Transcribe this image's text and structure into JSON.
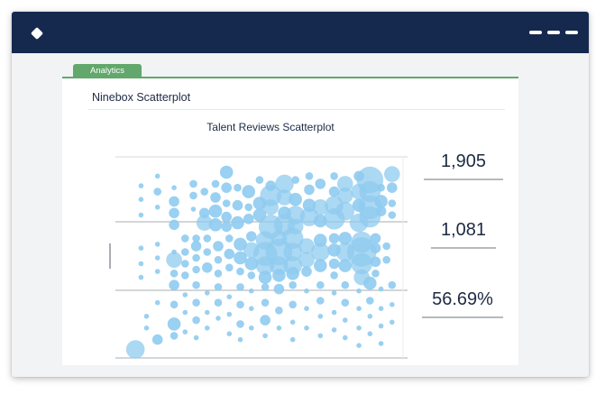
{
  "app": {
    "logo_icon": "diamond-icon",
    "menu_icon": "menu-dashes-icon",
    "header_color": "#15294f",
    "accent_color": "#62a76c"
  },
  "tab": {
    "label": "Analytics"
  },
  "section": {
    "title": "Ninebox Scatterplot"
  },
  "chart_data": {
    "type": "scatter",
    "title": "Talent Reviews Scatterplot",
    "xlabel": "",
    "ylabel": "",
    "grid": "three horizontal bands (3x3 ninebox)",
    "marker_color": "#8fcbef",
    "note": "bubble chart; x and y are relative 0-100 positions in the ninebox, size is relative magnitude",
    "points": [
      {
        "x": 6,
        "y": 87,
        "s": 1
      },
      {
        "x": 6,
        "y": 80,
        "s": 1
      },
      {
        "x": 6,
        "y": 72,
        "s": 1
      },
      {
        "x": 12,
        "y": 92,
        "s": 1
      },
      {
        "x": 12,
        "y": 84,
        "s": 2
      },
      {
        "x": 12,
        "y": 76,
        "s": 1
      },
      {
        "x": 18,
        "y": 86,
        "s": 1
      },
      {
        "x": 18,
        "y": 79,
        "s": 3
      },
      {
        "x": 18,
        "y": 73,
        "s": 3
      },
      {
        "x": 18,
        "y": 67,
        "s": 3
      },
      {
        "x": 25,
        "y": 88,
        "s": 2
      },
      {
        "x": 25,
        "y": 82,
        "s": 2
      },
      {
        "x": 25,
        "y": 75,
        "s": 1
      },
      {
        "x": 29,
        "y": 84,
        "s": 2
      },
      {
        "x": 29,
        "y": 73,
        "s": 3
      },
      {
        "x": 29,
        "y": 68,
        "s": 5
      },
      {
        "x": 33,
        "y": 88,
        "s": 2
      },
      {
        "x": 33,
        "y": 81,
        "s": 3
      },
      {
        "x": 33,
        "y": 74,
        "s": 4
      },
      {
        "x": 33,
        "y": 67,
        "s": 4
      },
      {
        "x": 37,
        "y": 94,
        "s": 4
      },
      {
        "x": 37,
        "y": 86,
        "s": 3
      },
      {
        "x": 37,
        "y": 78,
        "s": 2
      },
      {
        "x": 37,
        "y": 71,
        "s": 3
      },
      {
        "x": 37,
        "y": 66,
        "s": 3
      },
      {
        "x": 41,
        "y": 86,
        "s": 2
      },
      {
        "x": 41,
        "y": 77,
        "s": 3
      },
      {
        "x": 41,
        "y": 68,
        "s": 4
      },
      {
        "x": 45,
        "y": 84,
        "s": 4
      },
      {
        "x": 45,
        "y": 76,
        "s": 2
      },
      {
        "x": 45,
        "y": 70,
        "s": 3
      },
      {
        "x": 49,
        "y": 90,
        "s": 2
      },
      {
        "x": 49,
        "y": 78,
        "s": 4
      },
      {
        "x": 49,
        "y": 72,
        "s": 4
      },
      {
        "x": 53,
        "y": 87,
        "s": 3
      },
      {
        "x": 53,
        "y": 82,
        "s": 7
      },
      {
        "x": 53,
        "y": 76,
        "s": 5
      },
      {
        "x": 53,
        "y": 66,
        "s": 8
      },
      {
        "x": 58,
        "y": 88,
        "s": 6
      },
      {
        "x": 58,
        "y": 81,
        "s": 5
      },
      {
        "x": 58,
        "y": 73,
        "s": 4
      },
      {
        "x": 58,
        "y": 67,
        "s": 7
      },
      {
        "x": 62,
        "y": 90,
        "s": 2
      },
      {
        "x": 62,
        "y": 80,
        "s": 4
      },
      {
        "x": 62,
        "y": 72,
        "s": 6
      },
      {
        "x": 62,
        "y": 66,
        "s": 5
      },
      {
        "x": 67,
        "y": 92,
        "s": 2
      },
      {
        "x": 67,
        "y": 85,
        "s": 3
      },
      {
        "x": 67,
        "y": 77,
        "s": 4
      },
      {
        "x": 67,
        "y": 71,
        "s": 6
      },
      {
        "x": 71,
        "y": 88,
        "s": 3
      },
      {
        "x": 71,
        "y": 76,
        "s": 5
      },
      {
        "x": 71,
        "y": 69,
        "s": 4
      },
      {
        "x": 76,
        "y": 92,
        "s": 2
      },
      {
        "x": 76,
        "y": 84,
        "s": 3
      },
      {
        "x": 76,
        "y": 77,
        "s": 6
      },
      {
        "x": 76,
        "y": 70,
        "s": 7
      },
      {
        "x": 80,
        "y": 88,
        "s": 5
      },
      {
        "x": 80,
        "y": 82,
        "s": 5
      },
      {
        "x": 80,
        "y": 74,
        "s": 6
      },
      {
        "x": 85,
        "y": 92,
        "s": 3
      },
      {
        "x": 85,
        "y": 84,
        "s": 5
      },
      {
        "x": 85,
        "y": 77,
        "s": 4
      },
      {
        "x": 85,
        "y": 68,
        "s": 6
      },
      {
        "x": 89,
        "y": 90,
        "s": 9
      },
      {
        "x": 89,
        "y": 84,
        "s": 7
      },
      {
        "x": 89,
        "y": 76,
        "s": 8
      },
      {
        "x": 89,
        "y": 71,
        "s": 7
      },
      {
        "x": 93,
        "y": 86,
        "s": 2
      },
      {
        "x": 93,
        "y": 79,
        "s": 4
      },
      {
        "x": 93,
        "y": 74,
        "s": 3
      },
      {
        "x": 97,
        "y": 93,
        "s": 5
      },
      {
        "x": 97,
        "y": 86,
        "s": 3
      },
      {
        "x": 97,
        "y": 78,
        "s": 2
      },
      {
        "x": 97,
        "y": 72,
        "s": 2
      },
      {
        "x": 6,
        "y": 55,
        "s": 1
      },
      {
        "x": 6,
        "y": 47,
        "s": 1
      },
      {
        "x": 6,
        "y": 40,
        "s": 1
      },
      {
        "x": 12,
        "y": 57,
        "s": 1
      },
      {
        "x": 12,
        "y": 50,
        "s": 1
      },
      {
        "x": 12,
        "y": 43,
        "s": 1
      },
      {
        "x": 18,
        "y": 53,
        "s": 1
      },
      {
        "x": 18,
        "y": 49,
        "s": 5
      },
      {
        "x": 18,
        "y": 42,
        "s": 2
      },
      {
        "x": 22,
        "y": 60,
        "s": 2
      },
      {
        "x": 22,
        "y": 53,
        "s": 2
      },
      {
        "x": 22,
        "y": 47,
        "s": 2
      },
      {
        "x": 22,
        "y": 41,
        "s": 2
      },
      {
        "x": 26,
        "y": 60,
        "s": 2
      },
      {
        "x": 26,
        "y": 56,
        "s": 3
      },
      {
        "x": 26,
        "y": 50,
        "s": 2
      },
      {
        "x": 26,
        "y": 44,
        "s": 2
      },
      {
        "x": 30,
        "y": 60,
        "s": 2
      },
      {
        "x": 30,
        "y": 53,
        "s": 2
      },
      {
        "x": 30,
        "y": 45,
        "s": 3
      },
      {
        "x": 34,
        "y": 56,
        "s": 3
      },
      {
        "x": 34,
        "y": 49,
        "s": 2
      },
      {
        "x": 34,
        "y": 42,
        "s": 2
      },
      {
        "x": 38,
        "y": 60,
        "s": 2
      },
      {
        "x": 38,
        "y": 52,
        "s": 3
      },
      {
        "x": 38,
        "y": 45,
        "s": 2
      },
      {
        "x": 42,
        "y": 57,
        "s": 4
      },
      {
        "x": 42,
        "y": 50,
        "s": 4
      },
      {
        "x": 42,
        "y": 43,
        "s": 2
      },
      {
        "x": 46,
        "y": 61,
        "s": 3
      },
      {
        "x": 46,
        "y": 54,
        "s": 5
      },
      {
        "x": 46,
        "y": 47,
        "s": 4
      },
      {
        "x": 46,
        "y": 41,
        "s": 2
      },
      {
        "x": 51,
        "y": 59,
        "s": 6
      },
      {
        "x": 51,
        "y": 52,
        "s": 8
      },
      {
        "x": 51,
        "y": 46,
        "s": 6
      },
      {
        "x": 51,
        "y": 40,
        "s": 4
      },
      {
        "x": 56,
        "y": 60,
        "s": 5
      },
      {
        "x": 56,
        "y": 53,
        "s": 9
      },
      {
        "x": 56,
        "y": 46,
        "s": 6
      },
      {
        "x": 56,
        "y": 41,
        "s": 4
      },
      {
        "x": 61,
        "y": 60,
        "s": 7
      },
      {
        "x": 61,
        "y": 53,
        "s": 6
      },
      {
        "x": 61,
        "y": 46,
        "s": 6
      },
      {
        "x": 61,
        "y": 42,
        "s": 4
      },
      {
        "x": 66,
        "y": 56,
        "s": 5
      },
      {
        "x": 66,
        "y": 49,
        "s": 5
      },
      {
        "x": 66,
        "y": 43,
        "s": 3
      },
      {
        "x": 71,
        "y": 59,
        "s": 4
      },
      {
        "x": 71,
        "y": 53,
        "s": 6
      },
      {
        "x": 71,
        "y": 46,
        "s": 4
      },
      {
        "x": 76,
        "y": 60,
        "s": 3
      },
      {
        "x": 76,
        "y": 54,
        "s": 4
      },
      {
        "x": 76,
        "y": 47,
        "s": 3
      },
      {
        "x": 76,
        "y": 41,
        "s": 2
      },
      {
        "x": 80,
        "y": 60,
        "s": 4
      },
      {
        "x": 80,
        "y": 53,
        "s": 6
      },
      {
        "x": 80,
        "y": 46,
        "s": 4
      },
      {
        "x": 86,
        "y": 58,
        "s": 7
      },
      {
        "x": 86,
        "y": 53,
        "s": 10
      },
      {
        "x": 86,
        "y": 47,
        "s": 7
      },
      {
        "x": 86,
        "y": 40,
        "s": 5
      },
      {
        "x": 91,
        "y": 60,
        "s": 3
      },
      {
        "x": 91,
        "y": 55,
        "s": 3
      },
      {
        "x": 91,
        "y": 48,
        "s": 3
      },
      {
        "x": 91,
        "y": 42,
        "s": 2
      },
      {
        "x": 95,
        "y": 56,
        "s": 2
      },
      {
        "x": 95,
        "y": 49,
        "s": 2
      },
      {
        "x": 4,
        "y": 3,
        "s": 6
      },
      {
        "x": 8,
        "y": 20,
        "s": 1
      },
      {
        "x": 8,
        "y": 14,
        "s": 1
      },
      {
        "x": 12,
        "y": 8,
        "s": 3
      },
      {
        "x": 12,
        "y": 27,
        "s": 1
      },
      {
        "x": 18,
        "y": 36,
        "s": 3
      },
      {
        "x": 18,
        "y": 26,
        "s": 2
      },
      {
        "x": 18,
        "y": 16,
        "s": 4
      },
      {
        "x": 18,
        "y": 10,
        "s": 2
      },
      {
        "x": 22,
        "y": 31,
        "s": 1
      },
      {
        "x": 22,
        "y": 22,
        "s": 1
      },
      {
        "x": 22,
        "y": 12,
        "s": 1
      },
      {
        "x": 26,
        "y": 36,
        "s": 2
      },
      {
        "x": 26,
        "y": 27,
        "s": 2
      },
      {
        "x": 26,
        "y": 18,
        "s": 2
      },
      {
        "x": 26,
        "y": 9,
        "s": 1
      },
      {
        "x": 30,
        "y": 32,
        "s": 1
      },
      {
        "x": 30,
        "y": 22,
        "s": 1
      },
      {
        "x": 30,
        "y": 14,
        "s": 1
      },
      {
        "x": 34,
        "y": 35,
        "s": 2
      },
      {
        "x": 34,
        "y": 27,
        "s": 2
      },
      {
        "x": 34,
        "y": 19,
        "s": 1
      },
      {
        "x": 38,
        "y": 30,
        "s": 1
      },
      {
        "x": 38,
        "y": 21,
        "s": 1
      },
      {
        "x": 38,
        "y": 11,
        "s": 1
      },
      {
        "x": 42,
        "y": 35,
        "s": 2
      },
      {
        "x": 42,
        "y": 26,
        "s": 2
      },
      {
        "x": 42,
        "y": 16,
        "s": 2
      },
      {
        "x": 42,
        "y": 8,
        "s": 1
      },
      {
        "x": 46,
        "y": 33,
        "s": 1
      },
      {
        "x": 46,
        "y": 24,
        "s": 1
      },
      {
        "x": 46,
        "y": 14,
        "s": 1
      },
      {
        "x": 51,
        "y": 35,
        "s": 2
      },
      {
        "x": 51,
        "y": 27,
        "s": 2
      },
      {
        "x": 51,
        "y": 18,
        "s": 3
      },
      {
        "x": 51,
        "y": 10,
        "s": 1
      },
      {
        "x": 56,
        "y": 34,
        "s": 3
      },
      {
        "x": 56,
        "y": 23,
        "s": 2
      },
      {
        "x": 56,
        "y": 14,
        "s": 1
      },
      {
        "x": 61,
        "y": 36,
        "s": 2
      },
      {
        "x": 61,
        "y": 26,
        "s": 2
      },
      {
        "x": 61,
        "y": 17,
        "s": 1
      },
      {
        "x": 61,
        "y": 8,
        "s": 1
      },
      {
        "x": 66,
        "y": 33,
        "s": 1
      },
      {
        "x": 66,
        "y": 24,
        "s": 1
      },
      {
        "x": 66,
        "y": 14,
        "s": 1
      },
      {
        "x": 71,
        "y": 36,
        "s": 2
      },
      {
        "x": 71,
        "y": 28,
        "s": 2
      },
      {
        "x": 71,
        "y": 20,
        "s": 1
      },
      {
        "x": 71,
        "y": 10,
        "s": 1
      },
      {
        "x": 76,
        "y": 32,
        "s": 1
      },
      {
        "x": 76,
        "y": 22,
        "s": 1
      },
      {
        "x": 76,
        "y": 13,
        "s": 1
      },
      {
        "x": 80,
        "y": 36,
        "s": 2
      },
      {
        "x": 80,
        "y": 27,
        "s": 2
      },
      {
        "x": 80,
        "y": 18,
        "s": 1
      },
      {
        "x": 80,
        "y": 9,
        "s": 1
      },
      {
        "x": 85,
        "y": 33,
        "s": 1
      },
      {
        "x": 85,
        "y": 24,
        "s": 1
      },
      {
        "x": 85,
        "y": 14,
        "s": 1
      },
      {
        "x": 85,
        "y": 5,
        "s": 1
      },
      {
        "x": 89,
        "y": 37,
        "s": 4
      },
      {
        "x": 89,
        "y": 28,
        "s": 2
      },
      {
        "x": 89,
        "y": 20,
        "s": 1
      },
      {
        "x": 89,
        "y": 11,
        "s": 1
      },
      {
        "x": 93,
        "y": 34,
        "s": 1
      },
      {
        "x": 93,
        "y": 24,
        "s": 1
      },
      {
        "x": 93,
        "y": 15,
        "s": 1
      },
      {
        "x": 93,
        "y": 6,
        "s": 1
      },
      {
        "x": 97,
        "y": 36,
        "s": 2
      },
      {
        "x": 97,
        "y": 26,
        "s": 1
      },
      {
        "x": 97,
        "y": 17,
        "s": 1
      }
    ]
  },
  "stats": [
    {
      "value": "1,905"
    },
    {
      "value": "1,081"
    },
    {
      "value": "56.69%"
    }
  ]
}
